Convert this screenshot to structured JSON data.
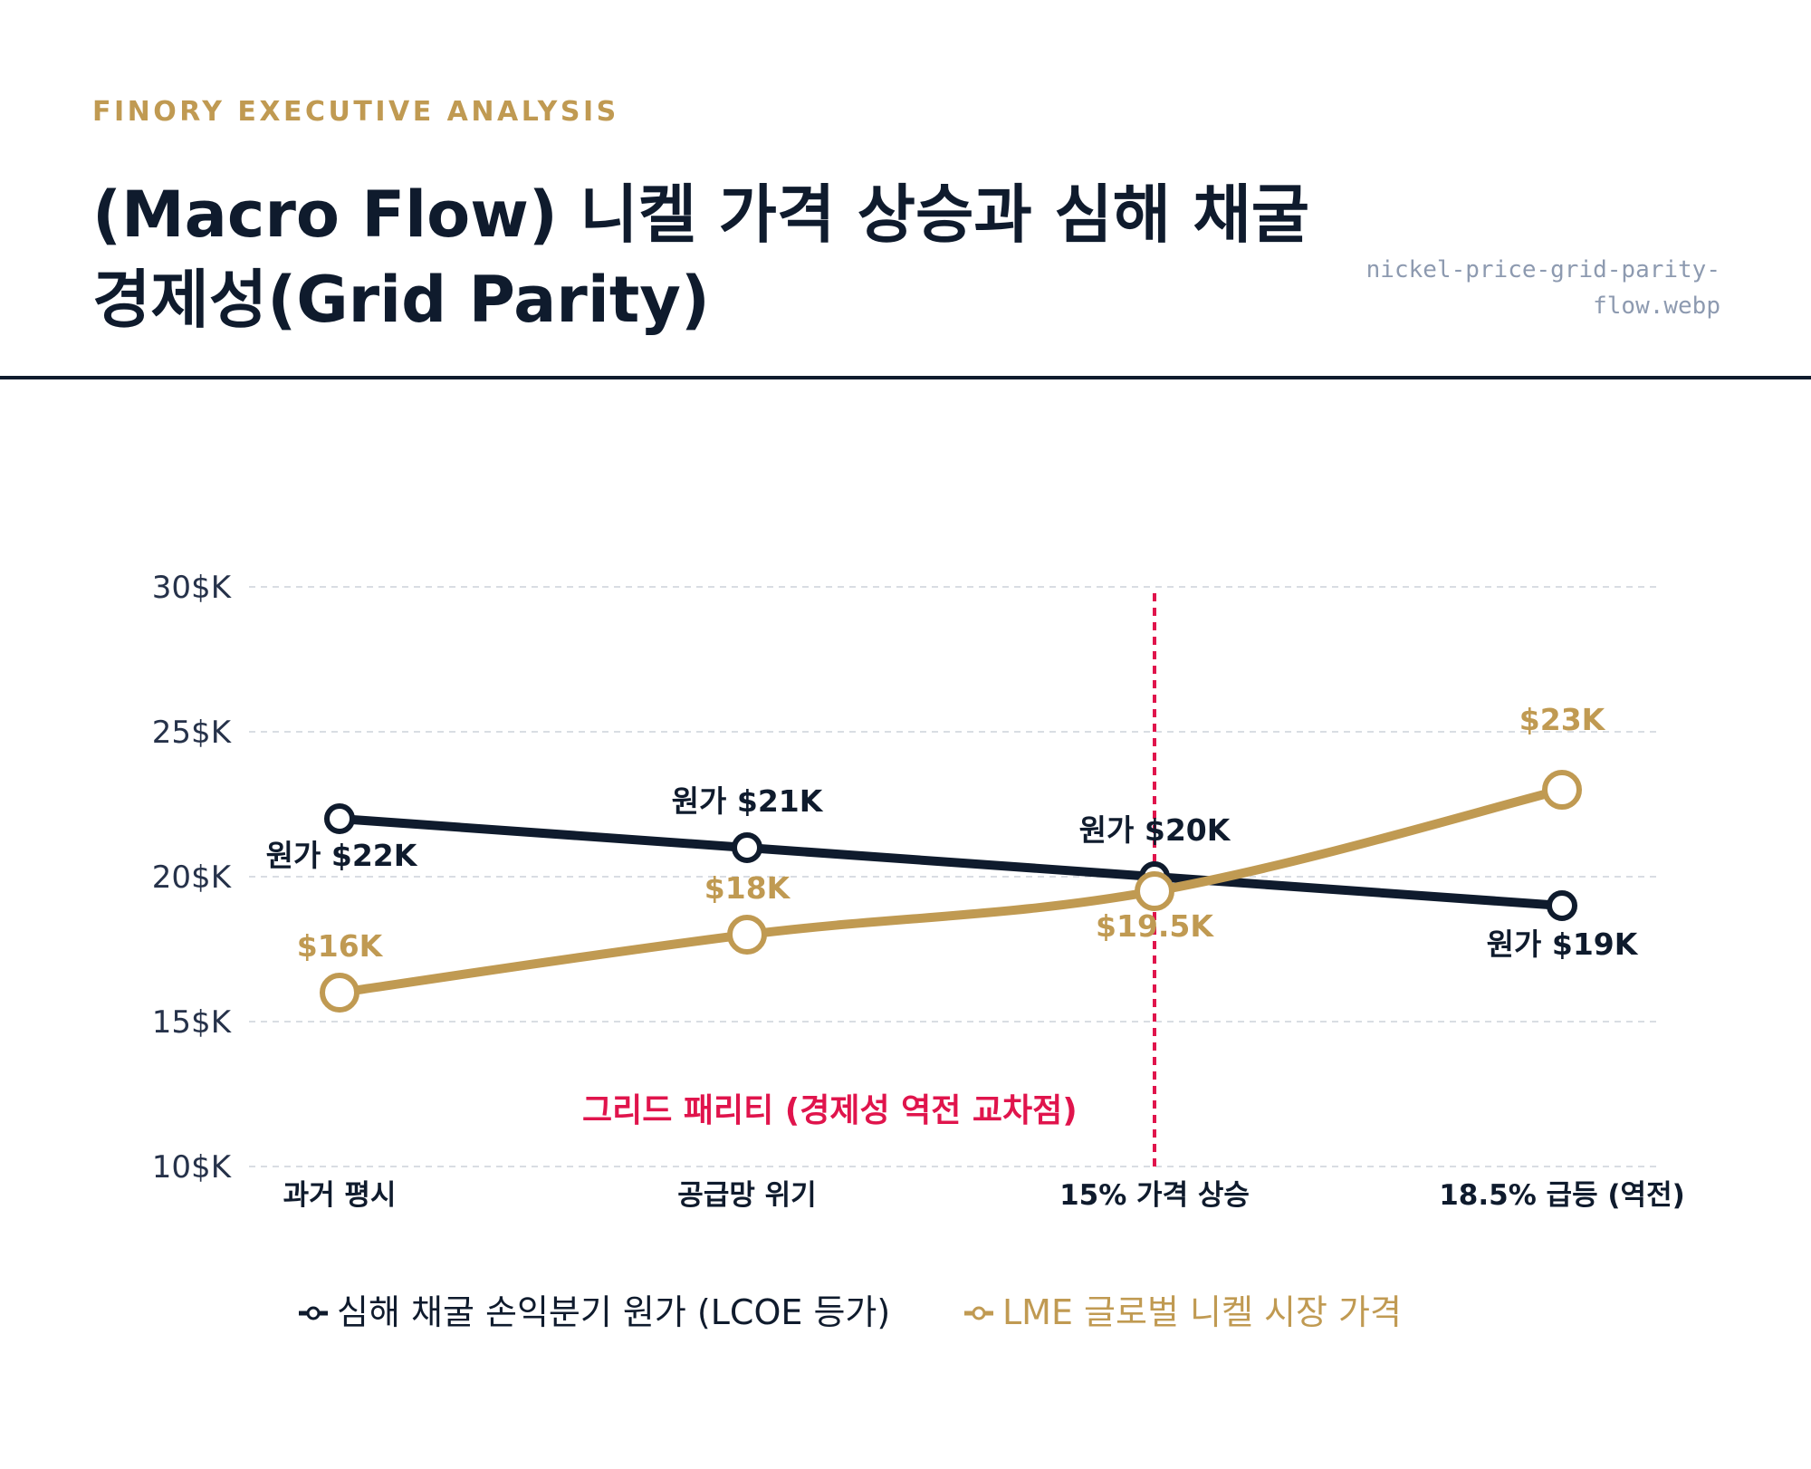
{
  "header": {
    "eyebrow": "FINORY EXECUTIVE ANALYSIS",
    "title": "(Macro Flow) 니켈 가격 상승과 심해 채굴 경제성(Grid Parity)",
    "filename": "nickel-price-grid-parity-flow.webp"
  },
  "colors": {
    "navy": "#0f1b2d",
    "gold": "#c09a52",
    "crimson": "#e0144c",
    "grid": "#d9dde3"
  },
  "chart_data": {
    "type": "line",
    "categories": [
      "과거 평시",
      "공급망 위기",
      "15% 가격 상승",
      "18.5% 급등 (역전)"
    ],
    "series": [
      {
        "name": "심해 채굴 손익분기 원가 (LCOE 등가)",
        "values": [
          22,
          21,
          20,
          19
        ],
        "labels": [
          "원가 $22K",
          "원가 $21K",
          "원가 $20K",
          "원가 $19K"
        ],
        "color": "#0f1b2d"
      },
      {
        "name": "LME 글로벌 니켈 시장 가격",
        "values": [
          16,
          18,
          19.5,
          23
        ],
        "labels": [
          "$16K",
          "$18K",
          "$19.5K",
          "$23K"
        ],
        "color": "#c09a52"
      }
    ],
    "yticks": [
      "10$K",
      "15$K",
      "20$K",
      "25$K",
      "30$K"
    ],
    "ylim": [
      10,
      30
    ],
    "grid": true,
    "annotation": {
      "text": "그리드 패리티 (경제성 역전 교차점)",
      "category_index": 2
    },
    "legend_position": "bottom"
  }
}
